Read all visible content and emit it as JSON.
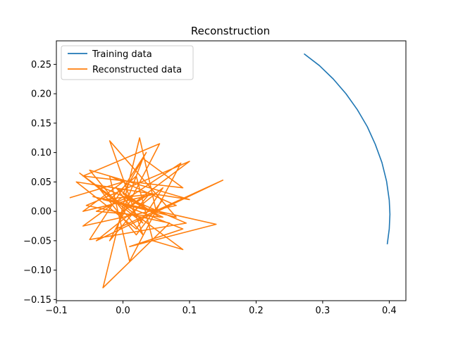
{
  "chart_data": {
    "type": "line",
    "title": "Reconstruction",
    "xlabel": "",
    "ylabel": "",
    "xlim": [
      -0.1,
      0.425
    ],
    "ylim": [
      -0.152,
      0.29
    ],
    "xticks": [
      -0.1,
      0.0,
      0.1,
      0.2,
      0.3,
      0.4
    ],
    "xtick_labels": [
      "−0.1",
      "0.0",
      "0.1",
      "0.2",
      "0.3",
      "0.4"
    ],
    "yticks": [
      -0.15,
      -0.1,
      -0.05,
      0.0,
      0.05,
      0.1,
      0.15,
      0.2,
      0.25
    ],
    "ytick_labels": [
      "−0.15",
      "−0.10",
      "−0.05",
      "0.00",
      "0.05",
      "0.10",
      "0.15",
      "0.20",
      "0.25"
    ],
    "grid": false,
    "legend_position": "top-left",
    "series": [
      {
        "name": "Training data",
        "color": "#1f77b4",
        "x": [
          0.272,
          0.295,
          0.316,
          0.335,
          0.352,
          0.367,
          0.379,
          0.389,
          0.396,
          0.4,
          0.401,
          0.4,
          0.397
        ],
        "y": [
          0.268,
          0.248,
          0.225,
          0.2,
          0.173,
          0.144,
          0.114,
          0.083,
          0.051,
          0.019,
          -0.005,
          -0.03,
          -0.056
        ]
      },
      {
        "name": "Reconstructed data",
        "color": "#ff7f0e",
        "x": [
          -0.08,
          0.0,
          -0.06,
          0.05,
          -0.03,
          0.08,
          -0.02,
          0.03,
          -0.05,
          0.1,
          -0.07,
          0.02,
          0.06,
          -0.04,
          0.15,
          -0.01,
          0.03,
          0.09,
          -0.06,
          0.055,
          -0.02,
          0.04,
          0.0,
          0.1,
          -0.055,
          0.07,
          -0.03,
          0.025,
          0.05,
          -0.045,
          0.14,
          0.01,
          0.09,
          -0.02,
          0.02,
          0.045,
          0.09,
          -0.065,
          0.03,
          -0.01,
          0.055,
          0.0,
          0.035,
          -0.05,
          0.095,
          -0.04,
          0.02,
          0.06,
          -0.02,
          0.01,
          0.087,
          0.015,
          -0.04,
          0.06,
          0.0,
          -0.06,
          0.08,
          0.03
        ],
        "y": [
          0.023,
          0.05,
          0.0,
          0.03,
          0.02,
          -0.01,
          0.12,
          -0.04,
          0.07,
          0.02,
          0.05,
          -0.03,
          0.04,
          -0.05,
          0.053,
          -0.03,
          0.09,
          0.04,
          0.06,
          0.115,
          -0.05,
          0.03,
          0.0,
          0.085,
          0.01,
          -0.02,
          -0.13,
          0.125,
          0.0,
          0.025,
          -0.022,
          -0.06,
          -0.03,
          0.02,
          0.06,
          -0.05,
          -0.065,
          0.065,
          -0.02,
          0.04,
          -0.01,
          0.03,
          0.1,
          -0.048,
          -0.02,
          0.045,
          -0.04,
          0.02,
          0.06,
          -0.085,
          0.082,
          0.028,
          0.0,
          -0.01,
          0.025,
          -0.025,
          0.01,
          0.035
        ]
      }
    ]
  }
}
